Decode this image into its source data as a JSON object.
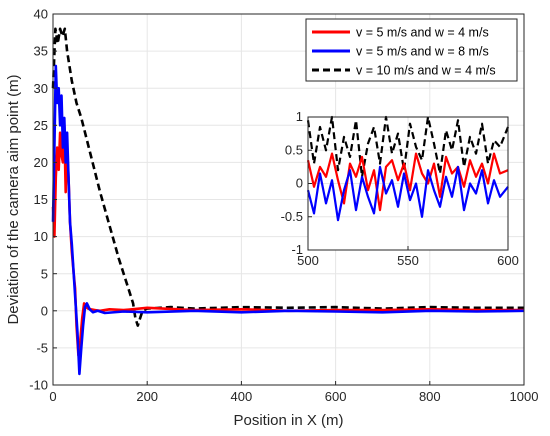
{
  "chart_data": [
    {
      "type": "line",
      "xlabel": "Position in X (m)",
      "ylabel": "Deviation of the camera aim point (m)",
      "xlim": [
        0,
        1000
      ],
      "ylim": [
        -10,
        40
      ],
      "x_ticks": [
        "0",
        "200",
        "400",
        "600",
        "800",
        "1000"
      ],
      "y_ticks": [
        "-10",
        "-5",
        "0",
        "5",
        "10",
        "15",
        "20",
        "25",
        "30",
        "35",
        "40"
      ],
      "grid": true,
      "legend_position": "top-right",
      "series": [
        {
          "name": "v = 5 m/s and w = 4 m/s",
          "color": "#ff0000",
          "style": "solid",
          "x": [
            0,
            3,
            6,
            9,
            12,
            15,
            18,
            21,
            24,
            27,
            30,
            33,
            36,
            40,
            44,
            47,
            50,
            54,
            58,
            62,
            66,
            70,
            75,
            80,
            90,
            100,
            120,
            150,
            200,
            300,
            400,
            500,
            600,
            700,
            800,
            900,
            1000
          ],
          "y": [
            14,
            10,
            18,
            22,
            19,
            24,
            21,
            20,
            25,
            16,
            22,
            18,
            12,
            8,
            5,
            3,
            -2,
            -6,
            -4,
            -1,
            1,
            0.5,
            0.3,
            0.2,
            0.1,
            0,
            0.2,
            0.1,
            0.4,
            0.1,
            0.2,
            0,
            0.1,
            0.1,
            0.2,
            0.1,
            0.1
          ]
        },
        {
          "name": "v = 5 m/s and w = 8 m/s",
          "color": "#0000ff",
          "style": "solid",
          "x": [
            0,
            3,
            6,
            9,
            12,
            15,
            18,
            21,
            24,
            27,
            30,
            33,
            36,
            40,
            44,
            48,
            52,
            56,
            60,
            64,
            68,
            72,
            78,
            85,
            95,
            110,
            150,
            200,
            300,
            400,
            500,
            600,
            700,
            800,
            900,
            1000
          ],
          "y": [
            12,
            22,
            33,
            28,
            30,
            25,
            29,
            22,
            26,
            20,
            24,
            18,
            12,
            9,
            5,
            1,
            -3,
            -8.5,
            -5,
            -2,
            0.5,
            1,
            0.2,
            -0.2,
            0,
            -0.3,
            -0.1,
            -0.2,
            0,
            -0.2,
            0,
            -0.1,
            -0.2,
            0,
            -0.1,
            0
          ]
        },
        {
          "name": "v = 10 m/s and w = 4 m/s",
          "color": "#000000",
          "style": "dashed",
          "x": [
            0,
            5,
            10,
            15,
            20,
            25,
            30,
            40,
            50,
            60,
            80,
            100,
            120,
            140,
            160,
            170,
            175,
            180,
            185,
            190,
            200,
            250,
            300,
            400,
            500,
            600,
            700,
            800,
            900,
            1000
          ],
          "y": [
            30,
            38,
            36,
            38,
            37,
            38,
            35,
            31,
            28,
            26,
            21,
            16,
            11.5,
            7,
            3,
            1,
            -1,
            -2,
            -1,
            0,
            0.3,
            0.5,
            0.3,
            0.5,
            0.4,
            0.5,
            0.3,
            0.5,
            0.4,
            0.4
          ]
        }
      ]
    },
    {
      "type": "line",
      "xlim": [
        500,
        600
      ],
      "ylim": [
        -1,
        1
      ],
      "x_ticks": [
        "500",
        "550",
        "600"
      ],
      "y_ticks": [
        "-1",
        "-0.5",
        "0",
        "0.5",
        "1"
      ],
      "grid": true,
      "series": [
        {
          "name": "v = 5 m/s and w = 4 m/s",
          "color": "#ff0000",
          "x": [
            500,
            503,
            506,
            509,
            512,
            515,
            518,
            521,
            524,
            527,
            530,
            533,
            536,
            539,
            542,
            545,
            548,
            551,
            554,
            557,
            560,
            563,
            566,
            569,
            572,
            575,
            578,
            581,
            584,
            587,
            590,
            593,
            596,
            600
          ],
          "y": [
            0.35,
            -0.05,
            0.25,
            0.1,
            0.45,
            0.05,
            -0.3,
            0.3,
            0.1,
            0.4,
            -0.1,
            0.2,
            -0.4,
            0.25,
            0.35,
            0.05,
            0.3,
            -0.1,
            0.45,
            0.15,
            0.0,
            0.3,
            -0.2,
            0.4,
            0.15,
            0.25,
            -0.05,
            0.35,
            0.1,
            0.3,
            0.0,
            0.45,
            0.15,
            0.2
          ]
        },
        {
          "name": "v = 5 m/s and w = 8 m/s",
          "color": "#0000ff",
          "x": [
            500,
            503,
            506,
            509,
            512,
            515,
            518,
            521,
            524,
            527,
            530,
            533,
            536,
            539,
            542,
            545,
            548,
            551,
            554,
            557,
            560,
            563,
            566,
            569,
            572,
            575,
            578,
            581,
            584,
            587,
            590,
            593,
            596,
            600
          ],
          "y": [
            -0.1,
            -0.45,
            0.15,
            -0.3,
            0.05,
            -0.55,
            -0.1,
            0.2,
            -0.4,
            0.1,
            -0.2,
            -0.45,
            0.25,
            -0.15,
            0.05,
            -0.35,
            0.15,
            -0.25,
            0.0,
            -0.5,
            0.2,
            -0.1,
            -0.35,
            0.1,
            -0.2,
            0.25,
            -0.4,
            0.0,
            -0.15,
            0.2,
            -0.3,
            0.05,
            -0.2,
            -0.05
          ]
        },
        {
          "name": "v = 10 m/s and w = 4 m/s",
          "color": "#000000",
          "x": [
            500,
            503,
            506,
            509,
            512,
            515,
            518,
            521,
            524,
            527,
            530,
            533,
            536,
            539,
            542,
            545,
            548,
            551,
            554,
            557,
            560,
            563,
            566,
            569,
            572,
            575,
            578,
            581,
            584,
            587,
            590,
            593,
            596,
            600
          ],
          "y": [
            0.95,
            0.3,
            0.85,
            0.5,
            1.0,
            0.2,
            0.7,
            0.4,
            0.95,
            0.1,
            0.6,
            0.85,
            0.3,
            1.0,
            0.45,
            0.75,
            0.2,
            0.9,
            0.55,
            0.35,
            1.0,
            0.6,
            0.15,
            0.8,
            0.5,
            0.95,
            0.25,
            0.7,
            0.45,
            0.9,
            0.3,
            0.65,
            0.55,
            0.85
          ]
        }
      ]
    }
  ]
}
